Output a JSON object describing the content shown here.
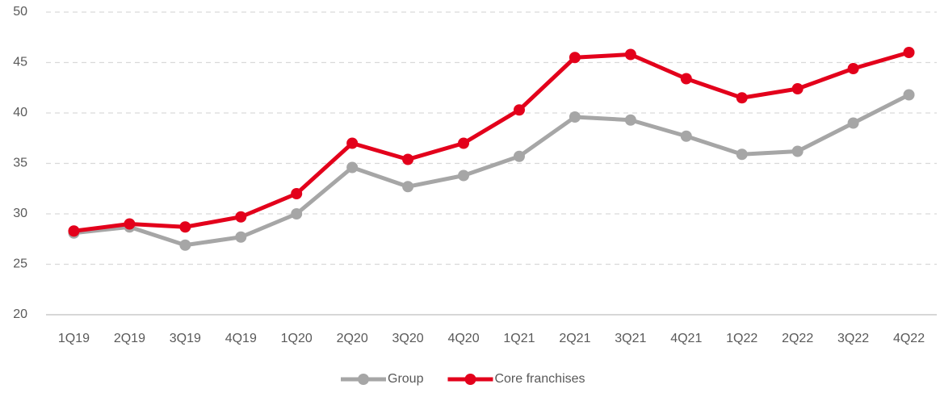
{
  "chart_data": {
    "type": "line",
    "categories": [
      "1Q19",
      "2Q19",
      "3Q19",
      "4Q19",
      "1Q20",
      "2Q20",
      "3Q20",
      "4Q20",
      "1Q21",
      "2Q21",
      "3Q21",
      "4Q21",
      "1Q22",
      "2Q22",
      "3Q22",
      "4Q22"
    ],
    "series": [
      {
        "name": "Group",
        "color": "#a6a6a6",
        "values": [
          28.1,
          28.7,
          26.9,
          27.7,
          30.0,
          34.6,
          32.7,
          33.8,
          35.7,
          39.6,
          39.3,
          37.7,
          35.9,
          36.2,
          39.0,
          41.8
        ]
      },
      {
        "name": "Core franchises",
        "color": "#e3001b",
        "values": [
          28.3,
          29.0,
          28.7,
          29.7,
          32.0,
          37.0,
          35.4,
          37.0,
          40.3,
          45.5,
          45.8,
          43.4,
          41.5,
          42.4,
          44.4,
          46.0
        ]
      }
    ],
    "ylim": [
      20,
      50
    ],
    "yticks": [
      20,
      25,
      30,
      35,
      40,
      45,
      50
    ],
    "grid": true,
    "legend": "bottom"
  }
}
